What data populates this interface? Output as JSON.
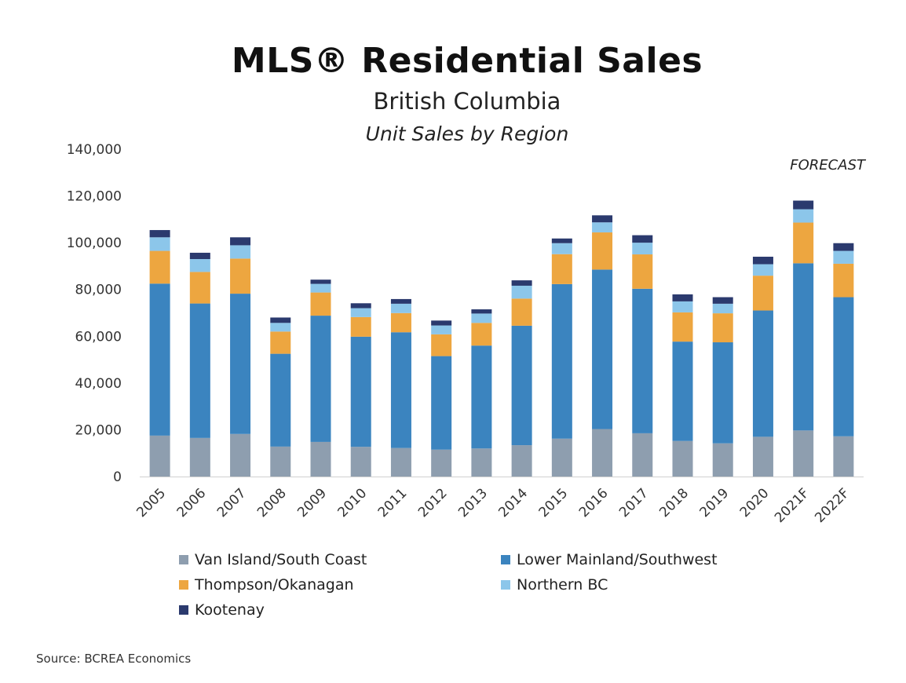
{
  "header": {
    "title": "MLS® Residential Sales",
    "subtitle": "British Columbia",
    "subtitle2": "Unit Sales by Region",
    "forecast_label": "FORECAST"
  },
  "footer": {
    "source": "Source: BCREA Economics"
  },
  "chart_data": {
    "type": "bar",
    "stacked": true,
    "title": "MLS® Residential Sales",
    "subtitle": "British Columbia",
    "xlabel": "",
    "ylabel": "",
    "ylim": [
      0,
      140000
    ],
    "yticks": [
      0,
      20000,
      40000,
      60000,
      80000,
      100000,
      120000,
      140000
    ],
    "ytick_labels": [
      "0",
      "20,000",
      "40,000",
      "60,000",
      "80,000",
      "100,000",
      "120,000",
      "140,000"
    ],
    "grid": false,
    "legend_position": "bottom",
    "categories": [
      "2005",
      "2006",
      "2007",
      "2008",
      "2009",
      "2010",
      "2011",
      "2012",
      "2013",
      "2014",
      "2015",
      "2016",
      "2017",
      "2018",
      "2019",
      "2020",
      "2021F",
      "2022F"
    ],
    "series": [
      {
        "name": "Van Island/South Coast",
        "color": "#8e9eaf",
        "values": [
          17500,
          16500,
          18200,
          12800,
          14800,
          12700,
          12200,
          11500,
          12000,
          13400,
          16200,
          20300,
          18500,
          15200,
          14200,
          17000,
          19700,
          17200
        ]
      },
      {
        "name": "Lower Mainland/Southwest",
        "color": "#3b84bf",
        "values": [
          65000,
          57500,
          60000,
          39700,
          54000,
          47100,
          49500,
          40000,
          44000,
          51100,
          66100,
          68200,
          61800,
          42500,
          43200,
          54000,
          71500,
          59500
        ]
      },
      {
        "name": "Thompson/Okanagan",
        "color": "#eda640",
        "values": [
          14000,
          13500,
          15000,
          9500,
          9900,
          8400,
          8200,
          9300,
          9700,
          11600,
          12800,
          15900,
          14700,
          12500,
          12400,
          14900,
          17400,
          14300
        ]
      },
      {
        "name": "Northern BC",
        "color": "#8cc6ea",
        "values": [
          5800,
          5500,
          5700,
          3700,
          3700,
          3800,
          4000,
          3800,
          4000,
          5500,
          4700,
          4300,
          5000,
          4700,
          4100,
          4900,
          5700,
          5500
        ]
      },
      {
        "name": "Kootenay",
        "color": "#2b3a6e",
        "values": [
          3100,
          2700,
          3400,
          2300,
          1800,
          2100,
          2000,
          2100,
          1800,
          2300,
          2000,
          3000,
          3200,
          3000,
          2800,
          3200,
          3700,
          3300
        ]
      }
    ]
  }
}
